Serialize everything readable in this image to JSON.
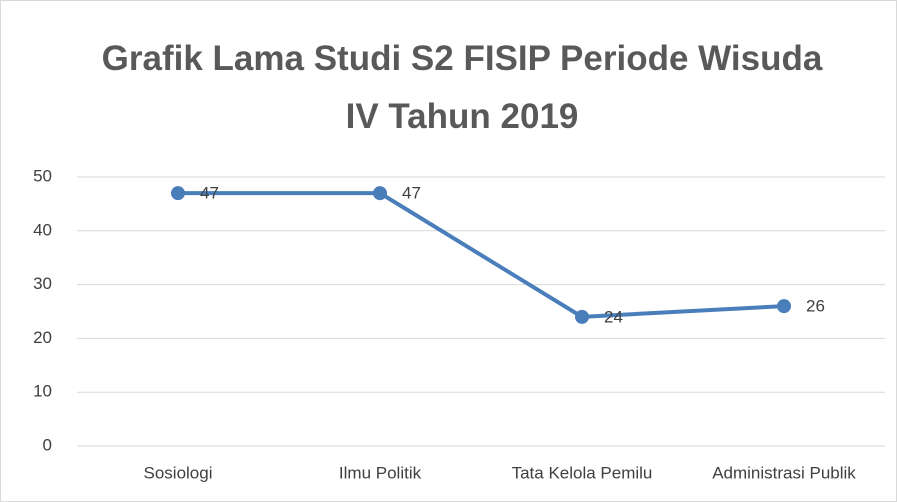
{
  "chart_data": {
    "type": "line",
    "title": "Grafik Lama Studi S2 FISIP Periode Wisuda IV Tahun 2019",
    "categories": [
      "Sosiologi",
      "Ilmu Politik",
      "Tata Kelola Pemilu",
      "Administrasi Publik"
    ],
    "values": [
      47,
      47,
      24,
      26
    ],
    "color": "#4a7ebb",
    "ylim": [
      0,
      50
    ],
    "yticks": [
      0,
      10,
      20,
      30,
      40,
      50
    ],
    "grid": true
  }
}
